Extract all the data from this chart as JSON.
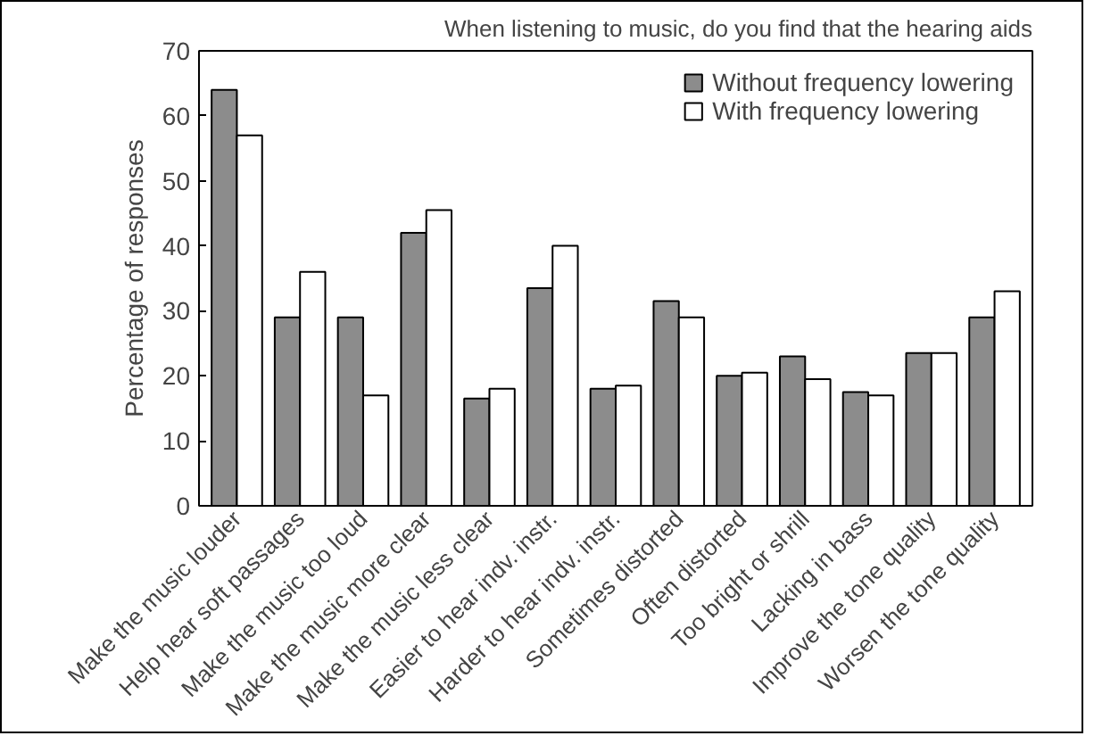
{
  "chart_data": {
    "type": "bar",
    "title": "When listening to music, do you find that the hearing aids",
    "ylabel": "Percentage of responses",
    "categories": [
      "Make the music louder",
      "Help hear soft passages",
      "Make the music too loud",
      "Make the music more clear",
      "Make the music less clear",
      "Easier to hear indv. instr.",
      "Harder to hear indv. instr.",
      "Sometimes distorted",
      "Often distorted",
      "Too bright or shrill",
      "Lacking in bass",
      "Improve the tone quality",
      "Worsen the tone quality"
    ],
    "series": [
      {
        "name": "Without frequency lowering",
        "color": "#8c8c8c",
        "values": [
          64,
          29,
          29,
          42,
          16.5,
          33.5,
          18,
          31.5,
          20,
          23,
          17.5,
          23.5,
          29
        ]
      },
      {
        "name": "With frequency lowering",
        "color": "#ffffff",
        "values": [
          57,
          36,
          17,
          45.5,
          18,
          40,
          18.5,
          29,
          20.5,
          19.5,
          17,
          23.5,
          33
        ]
      }
    ],
    "ylim": [
      0,
      70
    ],
    "yticks": [
      0,
      10,
      20,
      30,
      40,
      50,
      60,
      70
    ],
    "grid": false,
    "legend": "top right"
  }
}
